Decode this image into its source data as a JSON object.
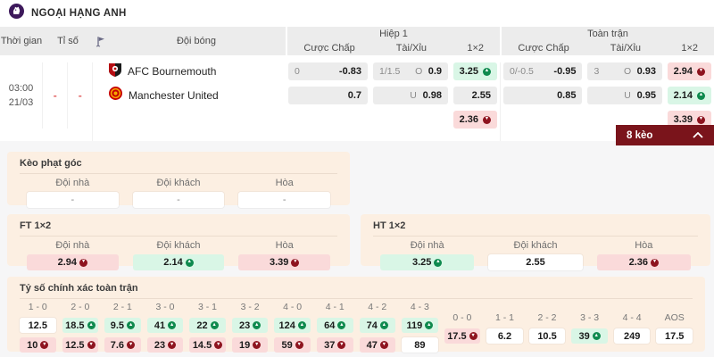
{
  "colors": {
    "accent_maroon": "#7a141b",
    "trend_up_icon": "#0f8a4e",
    "trend_down_icon": "#8e141f",
    "up_cell_bg": "#d9f6e6",
    "down_cell_bg": "#fadada",
    "panel_bg": "#fcefe2",
    "table_header_bg": "#ececec",
    "premier_league_purple": "#3d195b"
  },
  "league": {
    "name": "NGOẠI HẠNG ANH"
  },
  "table": {
    "headers": {
      "time": "Thời gian",
      "score": "Tỉ số",
      "team": "Đội bóng",
      "first_half": "Hiệp 1",
      "full_match": "Toàn trận",
      "handicap": "Cược Chấp",
      "over_under": "Tài/Xỉu",
      "one_x_two": "1×2"
    },
    "row": {
      "time_line1": "03:00",
      "time_line2": "21/03",
      "score_home": "-",
      "score_away": "-",
      "teams": [
        {
          "name": "AFC Bournemouth"
        },
        {
          "name": "Manchester United"
        }
      ],
      "first_half": {
        "handicap": [
          {
            "line": "0",
            "odds": "-0.83"
          },
          {
            "line": "",
            "odds": "0.7"
          }
        ],
        "over_under": [
          {
            "line": "1/1.5",
            "side": "O",
            "odds": "0.9"
          },
          {
            "line": "",
            "side": "U",
            "odds": "0.98"
          }
        ],
        "one_x_two": [
          {
            "odds": "3.25",
            "trend": "up"
          },
          {
            "odds": "2.55",
            "trend": ""
          },
          {
            "odds": "2.36",
            "trend": "down"
          }
        ]
      },
      "full_match": {
        "handicap": [
          {
            "line": "0/-0.5",
            "odds": "-0.95"
          },
          {
            "line": "",
            "odds": "0.85"
          }
        ],
        "over_under": [
          {
            "line": "3",
            "side": "O",
            "odds": "0.93"
          },
          {
            "line": "",
            "side": "U",
            "odds": "0.95"
          }
        ],
        "one_x_two": [
          {
            "odds": "2.94",
            "trend": "down"
          },
          {
            "odds": "2.14",
            "trend": "up"
          },
          {
            "odds": "3.39",
            "trend": "down"
          }
        ]
      }
    }
  },
  "keo_bar": {
    "label": "8 kèo"
  },
  "corner_panel": {
    "title": "Kèo phạt góc",
    "columns": [
      "Đội nhà",
      "Đội khách",
      "Hòa"
    ],
    "values": [
      {
        "odds": "-",
        "trend": ""
      },
      {
        "odds": "-",
        "trend": ""
      },
      {
        "odds": "-",
        "trend": ""
      }
    ]
  },
  "ft_panel": {
    "title": "FT 1×2",
    "columns": [
      "Đội nhà",
      "Đội khách",
      "Hòa"
    ],
    "values": [
      {
        "odds": "2.94",
        "trend": "down"
      },
      {
        "odds": "2.14",
        "trend": "up"
      },
      {
        "odds": "3.39",
        "trend": "down"
      }
    ]
  },
  "ht_panel": {
    "title": "HT 1×2",
    "columns": [
      "Đội nhà",
      "Đội khách",
      "Hòa"
    ],
    "values": [
      {
        "odds": "3.25",
        "trend": "up"
      },
      {
        "odds": "2.55",
        "trend": ""
      },
      {
        "odds": "2.36",
        "trend": "down"
      }
    ]
  },
  "correct_score_panel": {
    "title": "Tỷ số chính xác toàn trận",
    "paired": [
      {
        "score": "1 - 0",
        "top": {
          "odds": "12.5",
          "trend": ""
        },
        "bottom": {
          "odds": "10",
          "trend": "down"
        }
      },
      {
        "score": "2 - 0",
        "top": {
          "odds": "18.5",
          "trend": "up"
        },
        "bottom": {
          "odds": "12.5",
          "trend": "down"
        }
      },
      {
        "score": "2 - 1",
        "top": {
          "odds": "9.5",
          "trend": "up"
        },
        "bottom": {
          "odds": "7.6",
          "trend": "down"
        }
      },
      {
        "score": "3 - 0",
        "top": {
          "odds": "41",
          "trend": "up"
        },
        "bottom": {
          "odds": "23",
          "trend": "down"
        }
      },
      {
        "score": "3 - 1",
        "top": {
          "odds": "22",
          "trend": "up"
        },
        "bottom": {
          "odds": "14.5",
          "trend": "down"
        }
      },
      {
        "score": "3 - 2",
        "top": {
          "odds": "23",
          "trend": "up"
        },
        "bottom": {
          "odds": "19",
          "trend": "down"
        }
      },
      {
        "score": "4 - 0",
        "top": {
          "odds": "124",
          "trend": "up"
        },
        "bottom": {
          "odds": "59",
          "trend": "down"
        }
      },
      {
        "score": "4 - 1",
        "top": {
          "odds": "64",
          "trend": "up"
        },
        "bottom": {
          "odds": "37",
          "trend": "down"
        }
      },
      {
        "score": "4 - 2",
        "top": {
          "odds": "74",
          "trend": "up"
        },
        "bottom": {
          "odds": "47",
          "trend": "down"
        }
      },
      {
        "score": "4 - 3",
        "top": {
          "odds": "119",
          "trend": "up"
        },
        "bottom": {
          "odds": "89",
          "trend": ""
        }
      }
    ],
    "draws": [
      {
        "score": "0 - 0",
        "odds": "17.5",
        "trend": "down"
      },
      {
        "score": "1 - 1",
        "odds": "6.2",
        "trend": ""
      },
      {
        "score": "2 - 2",
        "odds": "10.5",
        "trend": ""
      },
      {
        "score": "3 - 3",
        "odds": "39",
        "trend": "up"
      },
      {
        "score": "4 - 4",
        "odds": "249",
        "trend": ""
      },
      {
        "score": "AOS",
        "odds": "17.5",
        "trend": ""
      }
    ]
  }
}
